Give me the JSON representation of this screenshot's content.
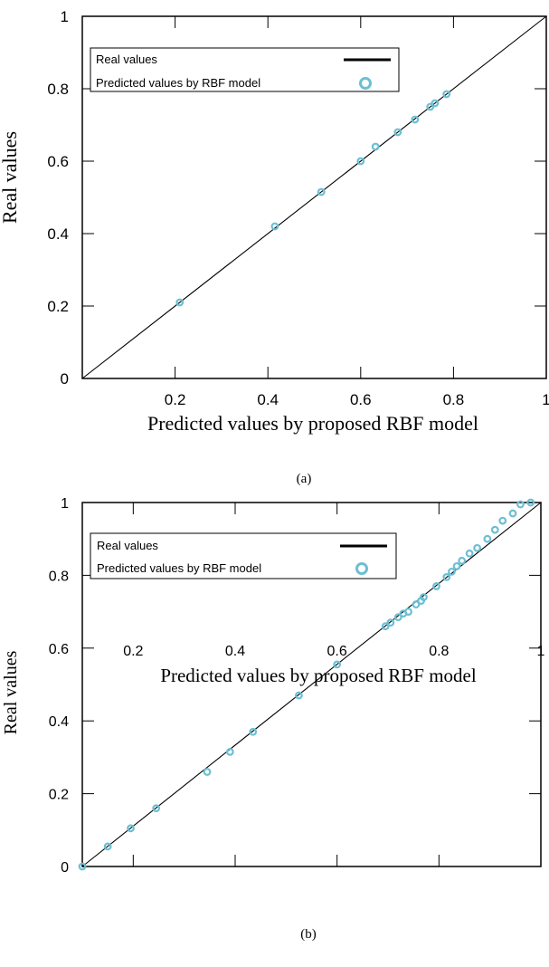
{
  "chart_data": [
    {
      "type": "scatter",
      "panel_caption": "(a)",
      "xlabel": "Predicted values by proposed RBF model",
      "ylabel": "Real values",
      "xlim": [
        0,
        1
      ],
      "ylim": [
        0,
        1
      ],
      "xticks": [
        "0.2",
        "0.4",
        "0.6",
        "0.8",
        "1"
      ],
      "xtick_values": [
        0.2,
        0.4,
        0.6,
        0.8,
        1.0
      ],
      "yticks": [
        "0",
        "0.2",
        "0.4",
        "0.6",
        "0.8",
        "1"
      ],
      "ytick_values": [
        0,
        0.2,
        0.4,
        0.6,
        0.8,
        1.0
      ],
      "grid": false,
      "legend_position": "top-left",
      "legend": [
        "Real values",
        "Predicted values by RBF model"
      ],
      "line": {
        "x": [
          0,
          1
        ],
        "y": [
          0,
          1
        ]
      },
      "points": {
        "x": [
          0.21,
          0.415,
          0.515,
          0.6,
          0.632,
          0.68,
          0.717,
          0.75,
          0.76,
          0.785
        ],
        "y": [
          0.21,
          0.42,
          0.515,
          0.6,
          0.64,
          0.68,
          0.715,
          0.75,
          0.76,
          0.785
        ]
      },
      "colors": {
        "line": "#000000",
        "marker": "#6cbfd3"
      }
    },
    {
      "type": "scatter",
      "panel_caption": "(b)",
      "xlabel": "Predicted values by proposed RBF model",
      "ylabel": "Real values",
      "xlim": [
        0.1,
        1
      ],
      "ylim": [
        0,
        1
      ],
      "xticks": [
        "0.2",
        "0.4",
        "0.6",
        "0.8",
        "1"
      ],
      "xtick_values": [
        0.2,
        0.4,
        0.6,
        0.8,
        1.0
      ],
      "yticks": [
        "0",
        "0.2",
        "0.4",
        "0.6",
        "0.8",
        "1"
      ],
      "ytick_values": [
        0,
        0.2,
        0.4,
        0.6,
        0.8,
        1.0
      ],
      "grid": false,
      "legend_position": "top-left",
      "legend": [
        "Real values",
        "Predicted values by RBF model"
      ],
      "line": {
        "x": [
          0.1,
          1
        ],
        "y": [
          0,
          1
        ]
      },
      "points": {
        "x": [
          0.1,
          0.15,
          0.195,
          0.245,
          0.345,
          0.39,
          0.435,
          0.525,
          0.6,
          0.695,
          0.705,
          0.72,
          0.73,
          0.74,
          0.755,
          0.765,
          0.77,
          0.795,
          0.815,
          0.825,
          0.835,
          0.845,
          0.86,
          0.875,
          0.895,
          0.91,
          0.925,
          0.945,
          0.96,
          0.98
        ],
        "y": [
          0.0,
          0.055,
          0.105,
          0.16,
          0.26,
          0.315,
          0.37,
          0.47,
          0.555,
          0.66,
          0.67,
          0.685,
          0.695,
          0.7,
          0.72,
          0.73,
          0.74,
          0.77,
          0.795,
          0.81,
          0.825,
          0.84,
          0.86,
          0.875,
          0.9,
          0.925,
          0.95,
          0.97,
          0.995,
          1.0
        ]
      },
      "colors": {
        "line": "#000000",
        "marker": "#6cbfd3"
      }
    }
  ]
}
